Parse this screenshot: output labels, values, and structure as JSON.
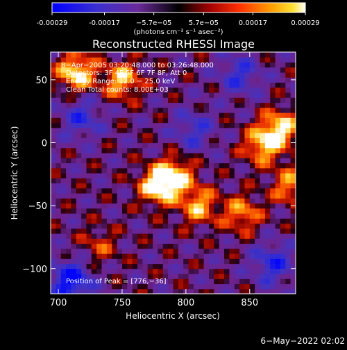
{
  "colorbar": {
    "ticks": [
      "-0.00029",
      "-0.00017",
      "−5.7e−05",
      "5.7e−05",
      "0.00017",
      "0.00029"
    ],
    "tick_values": [
      -0.00029,
      -0.00017,
      -5.7e-05,
      5.7e-05,
      0.00017,
      0.00029
    ],
    "min": -0.00029,
    "max": 0.00029,
    "units_label": "(photons cm⁻² s⁻¹ asec⁻²)"
  },
  "title": "Reconstructed RHESSI Image",
  "annotations": {
    "time_range": "8−Apr−2005 03:20:48.000 to 03:26:48.000",
    "detectors": "Detectors: 3F 4F 5F 6F 7F 8F, Att 0",
    "energy": "Energy Range: 12.0 − 25.0 keV",
    "clean": "Clean     Total counts: 8.00E+03",
    "peak": "Position of Peak = [776,−36]"
  },
  "xlabel": "Heliocentric X (arcsec)",
  "ylabel": "Heliocentric Y (arcsec)",
  "footer": "6−May−2022 02:02",
  "chart_data": {
    "type": "heatmap",
    "title": "Reconstructed RHESSI Image",
    "xlabel": "Heliocentric X (arcsec)",
    "ylabel": "Heliocentric Y (arcsec)",
    "xlim": [
      694,
      886
    ],
    "ylim": [
      -120,
      72
    ],
    "x_ticks": [
      700,
      750,
      800,
      850
    ],
    "y_ticks": [
      50,
      0,
      -50,
      -100
    ],
    "x_tick_labels": [
      "700",
      "750",
      "800",
      "850"
    ],
    "y_tick_labels": [
      "50",
      "0",
      "−50",
      "−100"
    ],
    "colormap": "rainbow-like (blue→purple→black→red→orange→yellow→white)",
    "peak_position": [
      776,
      -36
    ],
    "hot_regions": [
      {
        "x": 712,
        "y": 54,
        "value": 0.00029
      },
      {
        "x": 748,
        "y": 48,
        "value": 0.00024
      },
      {
        "x": 776,
        "y": -36,
        "value": 0.00029
      },
      {
        "x": 790,
        "y": -28,
        "value": 0.00024
      },
      {
        "x": 808,
        "y": -52,
        "value": 0.00022
      },
      {
        "x": 842,
        "y": -58,
        "value": 0.0002
      },
      {
        "x": 858,
        "y": -4,
        "value": 0.00024
      },
      {
        "x": 872,
        "y": 10,
        "value": 0.00026
      },
      {
        "x": 730,
        "y": -84,
        "value": 0.00012
      },
      {
        "x": 880,
        "y": -36,
        "value": 0.0002
      }
    ],
    "cold_regions": [
      {
        "x": 708,
        "y": -112,
        "value": -0.00029
      },
      {
        "x": 716,
        "y": 18,
        "value": -0.00017
      },
      {
        "x": 840,
        "y": 52,
        "value": -0.00017
      },
      {
        "x": 866,
        "y": -98,
        "value": -0.0002
      },
      {
        "x": 804,
        "y": 8,
        "value": -0.00015
      }
    ]
  }
}
